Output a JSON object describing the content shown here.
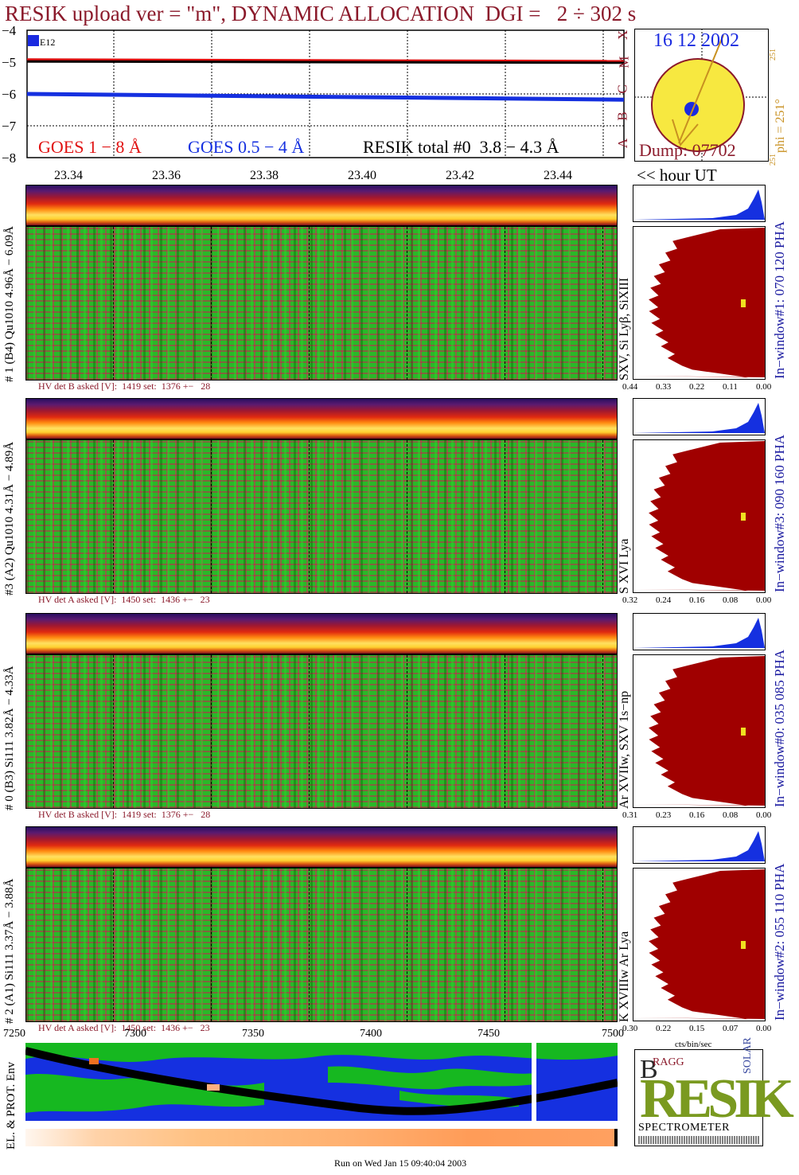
{
  "header": {
    "title": "RESIK upload ver = \"m\", DYNAMIC ALLOCATION  DGI =   2 ÷ 302 s"
  },
  "goes_panel": {
    "legend_goes_long": "GOES 1 − 8 Å",
    "legend_goes_short": "GOES 0.5 − 4 Å",
    "legend_resik": "RESIK total #0  3.8 − 4.3 Å",
    "flag_label": "E12",
    "class_letters": [
      "X",
      "M",
      "C",
      "B",
      "A"
    ],
    "colors": {
      "goes_long": "#e01010",
      "goes_short": "#1530e0",
      "resik": "#000000"
    }
  },
  "sun_panel": {
    "date": "16 12 2002",
    "dump": "Dump: 07702",
    "phi_label": "phi = 251°",
    "phi_small_top": "251",
    "phi_small_bottom": "251"
  },
  "time_axis": {
    "hour_label": "<< hour UT",
    "ticks": [
      "23.34",
      "23.36",
      "23.38",
      "23.40",
      "23.42",
      "23.44"
    ]
  },
  "channels": [
    {
      "side_label": "# 1 (B4) Qu1010 4.96Å − 6.09Å",
      "line_label": "SXV, Si Lyβ, SiXIII",
      "window_label": "In−window#1:  070 120 PHA",
      "hv_text": "HV det B asked [V]:  1419 set:  1376 +−   28",
      "pha_ticks": [
        "0.44",
        "0.33",
        "0.22",
        "0.11",
        "0.00"
      ]
    },
    {
      "side_label": "#3 (A2) Qu1010  4.31Å − 4.89Å",
      "line_label": "S XVI Lya",
      "window_label": "In−window#3:  090 160 PHA",
      "hv_text": "HV det A asked [V]:  1450 set:  1436 +−   23",
      "pha_ticks": [
        "0.32",
        "0.24",
        "0.16",
        "0.08",
        "0.00"
      ]
    },
    {
      "side_label": "# 0 (B3) Si111  3.82Å − 4.33Å",
      "line_label": "Ar XVIIw,  SXV 1s−np",
      "window_label": "In−window#0:  035 085 PHA",
      "hv_text": "HV det B asked [V]:  1419 set:  1376 +−   28",
      "pha_ticks": [
        "0.31",
        "0.23",
        "0.16",
        "0.08",
        "0.00"
      ]
    },
    {
      "side_label": "# 2 (A1) Si111  3.37Å − 3.88Å",
      "line_label": "K XVIIIw  Ar Lya",
      "window_label": "In−window#2:  055 110 PHA",
      "hv_text": "HV det A asked [V]:  1450 set:  1436 +−   23",
      "pha_ticks": [
        "0.30",
        "0.22",
        "0.15",
        "0.07",
        "0.00"
      ]
    }
  ],
  "pha_unit": "cts/bin/sec",
  "env_panel": {
    "side_label": "EL. & PROT. Env",
    "ticks": [
      "7250",
      "7300",
      "7350",
      "7400",
      "7450",
      "7500"
    ]
  },
  "logo": {
    "letters": "RESIK",
    "top_left": "B",
    "top_small": "RAGG",
    "side": "SOLAR",
    "subtitle": "SPECTROMETER"
  },
  "footer": {
    "run_text": "Run on Wed Jan 15 09:40:04 2003"
  },
  "chart_data": [
    {
      "type": "line",
      "ylim": [
        -8,
        -4
      ],
      "yticks": [
        -4,
        -5,
        -6,
        -7,
        -8
      ],
      "x": [
        "23.33",
        "23.45"
      ],
      "series": [
        {
          "name": "GOES 1 − 8 Å",
          "values": [
            -4.92,
            -4.97
          ]
        },
        {
          "name": "GOES 0.5 − 4 Å",
          "values": [
            -6.0,
            -6.18
          ]
        },
        {
          "name": "RESIK total #0  3.8 − 4.3 Å",
          "values": [
            -4.98,
            -5.02
          ]
        }
      ],
      "grid": true
    },
    {
      "type": "heatmap",
      "xticks": [
        7250,
        7300,
        7350,
        7400,
        7450,
        7500
      ],
      "xlim": [
        7250,
        7500
      ]
    }
  ]
}
